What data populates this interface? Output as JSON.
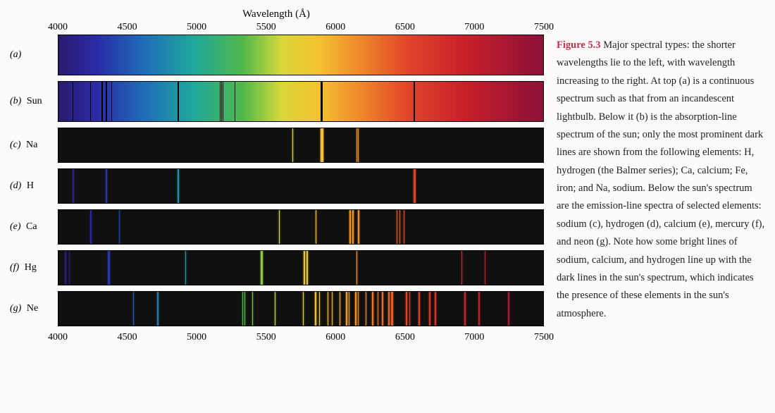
{
  "axis": {
    "title": "Wavelength (Å)",
    "min": 4000,
    "max": 7500,
    "ticks": [
      4000,
      4500,
      5000,
      5500,
      6000,
      6500,
      7000,
      7500
    ]
  },
  "spectrumGradient": {
    "stops": [
      {
        "pct": 0,
        "color": "#2a1a6e"
      },
      {
        "pct": 8,
        "color": "#2b2aa8"
      },
      {
        "pct": 18,
        "color": "#1f6fb8"
      },
      {
        "pct": 28,
        "color": "#1fa89a"
      },
      {
        "pct": 38,
        "color": "#4fb84a"
      },
      {
        "pct": 46,
        "color": "#d8d83a"
      },
      {
        "pct": 54,
        "color": "#f4c030"
      },
      {
        "pct": 62,
        "color": "#f08a2a"
      },
      {
        "pct": 72,
        "color": "#e0452a"
      },
      {
        "pct": 84,
        "color": "#c8202a"
      },
      {
        "pct": 100,
        "color": "#8a1038"
      }
    ]
  },
  "rows": [
    {
      "key": "a",
      "label": "(a)",
      "element": "",
      "type": "continuous",
      "lines": []
    },
    {
      "key": "b",
      "label": "(b)",
      "element": "Sun",
      "type": "absorption",
      "lines": [
        {
          "wl": 4102,
          "w": "thin"
        },
        {
          "wl": 4227,
          "w": "thin"
        },
        {
          "wl": 4308,
          "w": "normal"
        },
        {
          "wl": 4340,
          "w": "normal"
        },
        {
          "wl": 4384,
          "w": "thin"
        },
        {
          "wl": 4861,
          "w": "normal"
        },
        {
          "wl": 5167,
          "w": "thin"
        },
        {
          "wl": 5173,
          "w": "thin"
        },
        {
          "wl": 5184,
          "w": "thin"
        },
        {
          "wl": 5270,
          "w": "thin"
        },
        {
          "wl": 5890,
          "w": "normal"
        },
        {
          "wl": 5896,
          "w": "normal"
        },
        {
          "wl": 6563,
          "w": "normal"
        }
      ]
    },
    {
      "key": "c",
      "label": "(c)",
      "element": "Na",
      "type": "emission",
      "lines": [
        {
          "wl": 5688,
          "w": "thin"
        },
        {
          "wl": 5890,
          "w": "thick"
        },
        {
          "wl": 5896,
          "w": "thick"
        },
        {
          "wl": 6154,
          "w": "thin"
        },
        {
          "wl": 6161,
          "w": "thin"
        }
      ]
    },
    {
      "key": "d",
      "label": "(d)",
      "element": "H",
      "type": "emission",
      "lines": [
        {
          "wl": 4102,
          "w": "normal"
        },
        {
          "wl": 4340,
          "w": "normal"
        },
        {
          "wl": 4861,
          "w": "normal"
        },
        {
          "wl": 6563,
          "w": "thick"
        }
      ]
    },
    {
      "key": "e",
      "label": "(e)",
      "element": "Ca",
      "type": "emission",
      "lines": [
        {
          "wl": 4227,
          "w": "normal"
        },
        {
          "wl": 4435,
          "w": "thin"
        },
        {
          "wl": 5590,
          "w": "thin"
        },
        {
          "wl": 5857,
          "w": "thin"
        },
        {
          "wl": 6103,
          "w": "normal"
        },
        {
          "wl": 6122,
          "w": "normal"
        },
        {
          "wl": 6162,
          "w": "normal"
        },
        {
          "wl": 6440,
          "w": "thin"
        },
        {
          "wl": 6463,
          "w": "thin"
        },
        {
          "wl": 6495,
          "w": "thin"
        }
      ]
    },
    {
      "key": "f",
      "label": "(f)",
      "element": "Hg",
      "type": "emission",
      "lines": [
        {
          "wl": 4047,
          "w": "normal"
        },
        {
          "wl": 4078,
          "w": "thin"
        },
        {
          "wl": 4358,
          "w": "thick"
        },
        {
          "wl": 4916,
          "w": "thin"
        },
        {
          "wl": 5461,
          "w": "thick"
        },
        {
          "wl": 5770,
          "w": "normal"
        },
        {
          "wl": 5791,
          "w": "normal"
        },
        {
          "wl": 6150,
          "w": "thin"
        },
        {
          "wl": 6910,
          "w": "thin"
        },
        {
          "wl": 7080,
          "w": "thin"
        }
      ]
    },
    {
      "key": "g",
      "label": "(g)",
      "element": "Ne",
      "type": "emission",
      "lines": [
        {
          "wl": 4540,
          "w": "thin"
        },
        {
          "wl": 4710,
          "w": "thin"
        },
        {
          "wl": 4715,
          "w": "thin"
        },
        {
          "wl": 5330,
          "w": "thin"
        },
        {
          "wl": 5341,
          "w": "thin"
        },
        {
          "wl": 5401,
          "w": "thin"
        },
        {
          "wl": 5562,
          "w": "thin"
        },
        {
          "wl": 5764,
          "w": "thin"
        },
        {
          "wl": 5852,
          "w": "normal"
        },
        {
          "wl": 5882,
          "w": "thin"
        },
        {
          "wl": 5945,
          "w": "thin"
        },
        {
          "wl": 5976,
          "w": "thin"
        },
        {
          "wl": 6030,
          "w": "thin"
        },
        {
          "wl": 6074,
          "w": "normal"
        },
        {
          "wl": 6096,
          "w": "thin"
        },
        {
          "wl": 6143,
          "w": "normal"
        },
        {
          "wl": 6164,
          "w": "thin"
        },
        {
          "wl": 6217,
          "w": "thin"
        },
        {
          "wl": 6266,
          "w": "normal"
        },
        {
          "wl": 6305,
          "w": "thin"
        },
        {
          "wl": 6334,
          "w": "normal"
        },
        {
          "wl": 6383,
          "w": "normal"
        },
        {
          "wl": 6402,
          "w": "thick"
        },
        {
          "wl": 6507,
          "w": "normal"
        },
        {
          "wl": 6533,
          "w": "thin"
        },
        {
          "wl": 6599,
          "w": "normal"
        },
        {
          "wl": 6678,
          "w": "normal"
        },
        {
          "wl": 6717,
          "w": "normal"
        },
        {
          "wl": 6929,
          "w": "normal"
        },
        {
          "wl": 7032,
          "w": "normal"
        },
        {
          "wl": 7245,
          "w": "normal"
        }
      ]
    }
  ],
  "caption": {
    "label": "Figure 5.3",
    "text": " Major spectral types: the shorter wavelengths lie to the left, with wavelength increasing to the right. At top (a) is a continuous spectrum such as that from an incandescent lightbulb. Below it (b) is the absorption-line spectrum of the sun; only the most prominent dark lines are shown from the following elements: H, hydrogen (the Balmer series); Ca, calcium; Fe, iron; and Na, sodium. Below the sun's spectrum are the emission-line spectra of selected elements: sodium (c), hydrogen (d), calcium (e), mercury (f), and neon (g). Note how some bright lines of sodium, calcium, and hydrogen line up with the dark lines in the sun's spectrum, which indicates the presence of these elements in the sun's atmosphere."
  }
}
